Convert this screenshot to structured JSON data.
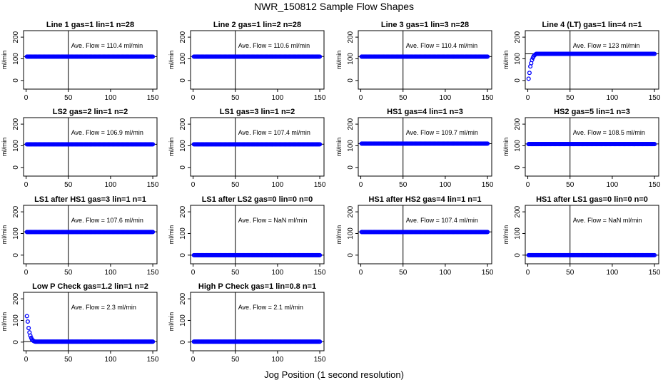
{
  "title": "NWR_150812  Sample Flow Shapes",
  "xlabel": "Jog Position (1 second resolution)",
  "colors": {
    "points": "#0000ff",
    "axis": "#000000"
  },
  "chart_data": [
    {
      "type": "scatter",
      "title": "Line 1 gas=1 lin=1 n=28",
      "ylabel": "ml/min",
      "annotation": "Ave. Flow =  110.4  ml/min",
      "mean": 110.4,
      "shape": "flat",
      "level": 110,
      "ylim": [
        -40,
        230
      ],
      "xlim": [
        -3,
        155
      ],
      "yticks": [
        0,
        100,
        200
      ],
      "xticks": [
        0,
        50,
        100,
        150
      ],
      "vline": 50,
      "x": [
        1,
        150
      ]
    },
    {
      "type": "scatter",
      "title": "Line 2 gas=1 lin=2 n=28",
      "ylabel": "ml/min",
      "annotation": "Ave. Flow =  110.6  ml/min",
      "mean": 110.6,
      "shape": "flat",
      "level": 110,
      "ylim": [
        -40,
        230
      ],
      "xlim": [
        -3,
        155
      ],
      "yticks": [
        0,
        100,
        200
      ],
      "xticks": [
        0,
        50,
        100,
        150
      ],
      "vline": 50,
      "x": [
        1,
        150
      ]
    },
    {
      "type": "scatter",
      "title": "Line 3 gas=1 lin=3 n=28",
      "ylabel": "ml/min",
      "annotation": "Ave. Flow =  110.4  ml/min",
      "mean": 110.4,
      "shape": "flat",
      "level": 110,
      "ylim": [
        -40,
        230
      ],
      "xlim": [
        -3,
        155
      ],
      "yticks": [
        0,
        100,
        200
      ],
      "xticks": [
        0,
        50,
        100,
        150
      ],
      "vline": 50,
      "x": [
        1,
        150
      ]
    },
    {
      "type": "scatter",
      "title": "Line 4 (LT) gas=1 lin=4 n=1",
      "ylabel": "ml/min",
      "annotation": "Ave. Flow =  123  ml/min",
      "mean": 123,
      "shape": "rise",
      "level": 123,
      "start": [
        8,
        35,
        65,
        80,
        95,
        105,
        112,
        117,
        120
      ],
      "ylim": [
        -40,
        230
      ],
      "xlim": [
        -3,
        155
      ],
      "yticks": [
        0,
        100,
        200
      ],
      "xticks": [
        0,
        50,
        100,
        150
      ],
      "vline": 50,
      "x": [
        1,
        150
      ]
    },
    {
      "type": "scatter",
      "title": "LS2 gas=2 lin=1 n=2",
      "ylabel": "ml/min",
      "annotation": "Ave. Flow =  106.9  ml/min",
      "mean": 106.9,
      "shape": "flat",
      "level": 107,
      "ylim": [
        -40,
        230
      ],
      "xlim": [
        -3,
        155
      ],
      "yticks": [
        0,
        100,
        200
      ],
      "xticks": [
        0,
        50,
        100,
        150
      ],
      "vline": 50,
      "x": [
        1,
        150
      ]
    },
    {
      "type": "scatter",
      "title": "LS1 gas=3 lin=1 n=2",
      "ylabel": "ml/min",
      "annotation": "Ave. Flow =  107.4  ml/min",
      "mean": 107.4,
      "shape": "flat",
      "level": 107,
      "ylim": [
        -40,
        230
      ],
      "xlim": [
        -3,
        155
      ],
      "yticks": [
        0,
        100,
        200
      ],
      "xticks": [
        0,
        50,
        100,
        150
      ],
      "vline": 50,
      "x": [
        1,
        150
      ]
    },
    {
      "type": "scatter",
      "title": "HS1 gas=4 lin=1 n=3",
      "ylabel": "ml/min",
      "annotation": "Ave. Flow =  109.7  ml/min",
      "mean": 109.7,
      "shape": "flat",
      "level": 110,
      "ylim": [
        -40,
        230
      ],
      "xlim": [
        -3,
        155
      ],
      "yticks": [
        0,
        100,
        200
      ],
      "xticks": [
        0,
        50,
        100,
        150
      ],
      "vline": 50,
      "x": [
        1,
        150
      ]
    },
    {
      "type": "scatter",
      "title": "HS2 gas=5 lin=1 n=3",
      "ylabel": "ml/min",
      "annotation": "Ave. Flow =  108.5  ml/min",
      "mean": 108.5,
      "shape": "flat",
      "level": 108,
      "ylim": [
        -40,
        230
      ],
      "xlim": [
        -3,
        155
      ],
      "yticks": [
        0,
        100,
        200
      ],
      "xticks": [
        0,
        50,
        100,
        150
      ],
      "vline": 50,
      "x": [
        1,
        150
      ]
    },
    {
      "type": "scatter",
      "title": "LS1 after HS1 gas=3 lin=1 n=1",
      "ylabel": "ml/min",
      "annotation": "Ave. Flow =  107.6  ml/min",
      "mean": 107.6,
      "shape": "flat",
      "level": 107,
      "ylim": [
        -40,
        230
      ],
      "xlim": [
        -3,
        155
      ],
      "yticks": [
        0,
        100,
        200
      ],
      "xticks": [
        0,
        50,
        100,
        150
      ],
      "vline": 50,
      "x": [
        1,
        150
      ]
    },
    {
      "type": "scatter",
      "title": "LS1 after LS2 gas=0 lin=0 n=0",
      "ylabel": "ml/min",
      "annotation": "Ave. Flow =  NaN  ml/min",
      "mean": null,
      "shape": "flat",
      "level": 0,
      "ylim": [
        -40,
        230
      ],
      "xlim": [
        -3,
        155
      ],
      "yticks": [
        0,
        100,
        200
      ],
      "xticks": [
        0,
        50,
        100,
        150
      ],
      "vline": 50,
      "x": [
        1,
        150
      ]
    },
    {
      "type": "scatter",
      "title": "HS1 after HS2 gas=4 lin=1 n=1",
      "ylabel": "ml/min",
      "annotation": "Ave. Flow =  107.4  ml/min",
      "mean": 107.4,
      "shape": "flat",
      "level": 107,
      "ylim": [
        -40,
        230
      ],
      "xlim": [
        -3,
        155
      ],
      "yticks": [
        0,
        100,
        200
      ],
      "xticks": [
        0,
        50,
        100,
        150
      ],
      "vline": 50,
      "x": [
        1,
        150
      ]
    },
    {
      "type": "scatter",
      "title": "HS1 after LS1 gas=0 lin=0 n=0",
      "ylabel": "ml/min",
      "annotation": "Ave. Flow =  NaN  ml/min",
      "mean": null,
      "shape": "flat",
      "level": 0,
      "ylim": [
        -40,
        230
      ],
      "xlim": [
        -3,
        155
      ],
      "yticks": [
        0,
        100,
        200
      ],
      "xticks": [
        0,
        50,
        100,
        150
      ],
      "vline": 50,
      "x": [
        1,
        150
      ]
    },
    {
      "type": "scatter",
      "title": "Low P Check gas=1.2 lin=1 n=2",
      "ylabel": "ml/min",
      "annotation": "Ave. Flow =  2.3  ml/min",
      "mean": 2.3,
      "shape": "decay",
      "level": 2,
      "start": [
        120,
        95,
        65,
        45,
        30,
        20,
        12,
        8,
        5,
        3
      ],
      "ylim": [
        -40,
        230
      ],
      "xlim": [
        -3,
        155
      ],
      "yticks": [
        0,
        100,
        200
      ],
      "xticks": [
        0,
        50,
        100,
        150
      ],
      "vline": 50,
      "x": [
        1,
        150
      ]
    },
    {
      "type": "scatter",
      "title": "High P Check gas=1 lin=0.8 n=1",
      "ylabel": "ml/min",
      "annotation": "Ave. Flow =  2.1  ml/min",
      "mean": 2.1,
      "shape": "flat",
      "level": 2,
      "ylim": [
        -40,
        230
      ],
      "xlim": [
        -3,
        155
      ],
      "yticks": [
        0,
        100,
        200
      ],
      "xticks": [
        0,
        50,
        100,
        150
      ],
      "vline": 50,
      "x": [
        1,
        150
      ]
    }
  ]
}
